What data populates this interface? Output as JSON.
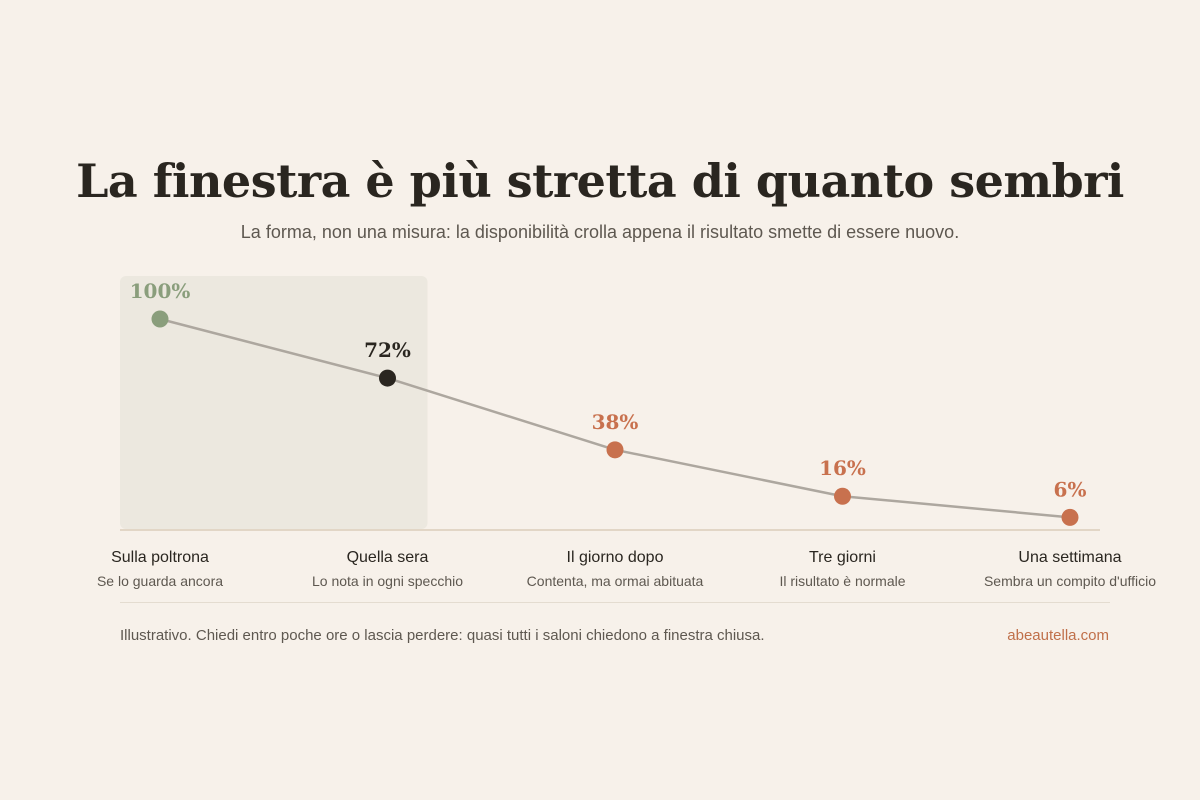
{
  "header": {
    "title": "La finestra è più stretta di quanto sembri",
    "subtitle": "La forma, non una misura: la disponibilità crolla appena il risultato smette di essere nuovo."
  },
  "colors": {
    "background": "#f7f1ea",
    "highlight_band": "#ece8df",
    "line": "#ada79f",
    "first_point": "#8a9e7c",
    "current_point": "#2a2620",
    "declining_point": "#c8714e",
    "baseline": "#dccdb9"
  },
  "chart_data": {
    "type": "line",
    "title": "La finestra è più stretta di quanto sembri",
    "categories": [
      "Sulla poltrona",
      "Quella sera",
      "Il giorno dopo",
      "Tre giorni",
      "Una settimana"
    ],
    "category_notes": [
      "Se lo guarda ancora",
      "Lo nota in ogni specchio",
      "Contenta, ma ormai abituata",
      "Il risultato è normale",
      "Sembra un compito d'ufficio"
    ],
    "values": [
      100,
      72,
      38,
      16,
      6
    ],
    "value_labels": [
      "100%",
      "72%",
      "38%",
      "16%",
      "6%"
    ],
    "ylim": [
      0,
      100
    ],
    "highlighted_categories": [
      "Sulla poltrona",
      "Quella sera"
    ],
    "grid": false,
    "legend": "none"
  },
  "footer": {
    "note": "Illustrativo. Chiedi entro poche ore o lascia perdere: quasi tutti i saloni chiedono a finestra chiusa.",
    "brand": "abeautella.com"
  }
}
